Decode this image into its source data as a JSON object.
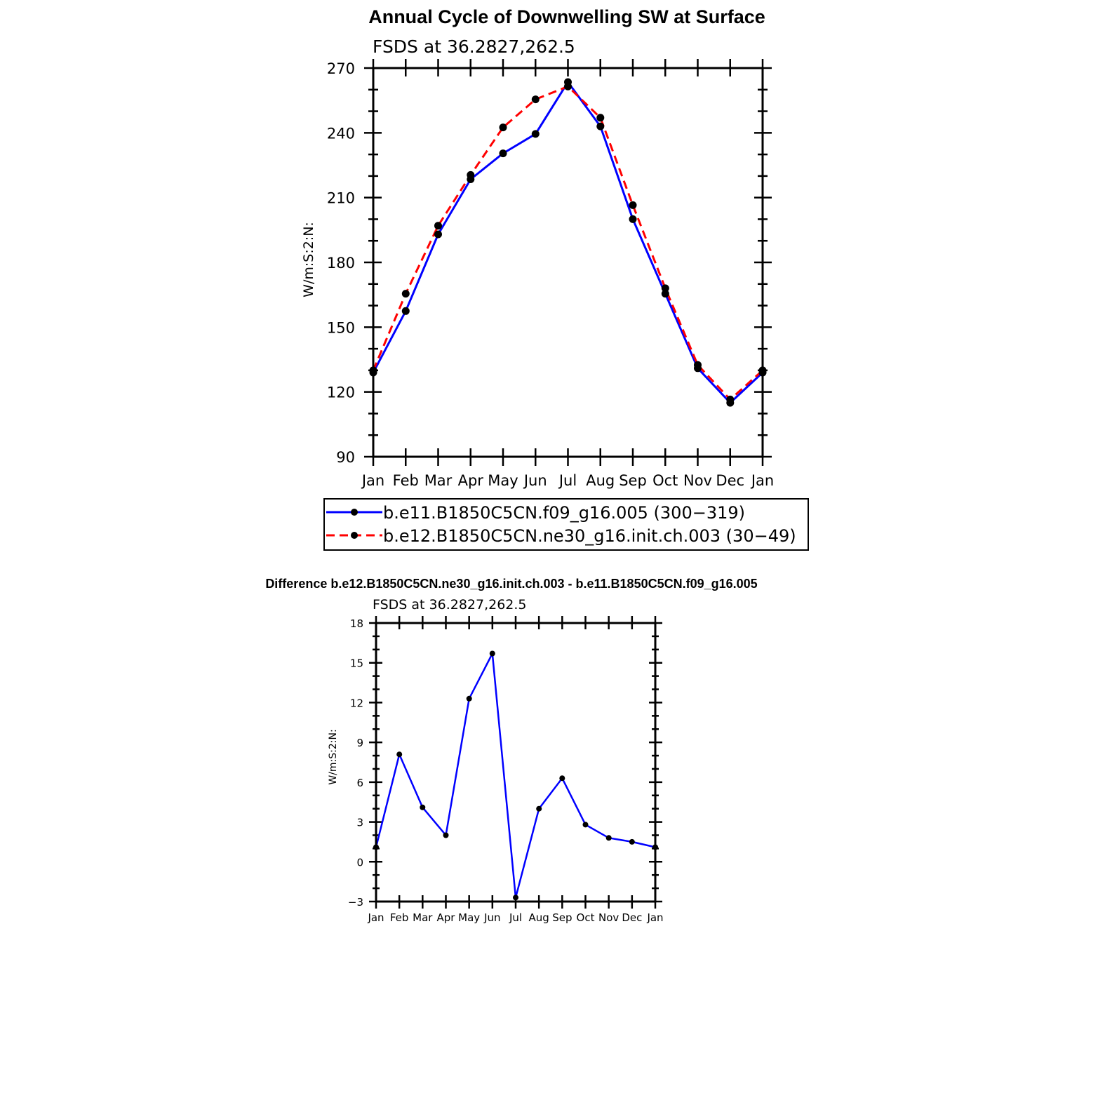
{
  "chart_data": [
    {
      "type": "line",
      "title": "Annual Cycle of Downwelling SW at Surface",
      "subtitle": "FSDS at 36.2827,262.5",
      "xlabel": "",
      "ylabel": "W/m:S:2:N:",
      "categories": [
        "Jan",
        "Feb",
        "Mar",
        "Apr",
        "May",
        "Jun",
        "Jul",
        "Aug",
        "Sep",
        "Oct",
        "Nov",
        "Dec",
        "Jan"
      ],
      "ylim": [
        90,
        270
      ],
      "yticks": [
        90,
        120,
        150,
        180,
        210,
        240,
        270
      ],
      "grid": false,
      "legend_position": "bottom",
      "series": [
        {
          "name": "b.e11.B1850C5CN.f09_g16.005 (300−319)",
          "color": "#0000ff",
          "dash": "solid",
          "values": [
            129,
            157.5,
            193,
            218.5,
            230.5,
            239.5,
            263.5,
            243,
            200,
            165.5,
            131,
            115,
            129
          ]
        },
        {
          "name": "b.e12.B1850C5CN.ne30_g16.init.ch.003 (30−49)",
          "color": "#ff0000",
          "dash": "dashed",
          "values": [
            130,
            165.5,
            197,
            220.5,
            242.5,
            255.5,
            261.5,
            247,
            206.5,
            168,
            132.5,
            116.5,
            130
          ]
        }
      ]
    },
    {
      "type": "line",
      "title": "Difference b.e12.B1850C5CN.ne30_g16.init.ch.003 - b.e11.B1850C5CN.f09_g16.005",
      "subtitle": "FSDS at 36.2827,262.5",
      "xlabel": "",
      "ylabel": "W/m:S:2:N:",
      "categories": [
        "Jan",
        "Feb",
        "Mar",
        "Apr",
        "May",
        "Jun",
        "Jul",
        "Aug",
        "Sep",
        "Oct",
        "Nov",
        "Dec",
        "Jan"
      ],
      "ylim": [
        -3,
        18
      ],
      "yticks": [
        -3,
        0,
        3,
        6,
        9,
        12,
        15,
        18
      ],
      "grid": false,
      "series": [
        {
          "color": "#0000ff",
          "dash": "solid",
          "values": [
            1.1,
            8.1,
            4.1,
            2.0,
            12.3,
            15.7,
            -2.7,
            4.0,
            6.3,
            2.8,
            1.8,
            1.5,
            1.1
          ]
        }
      ]
    }
  ]
}
